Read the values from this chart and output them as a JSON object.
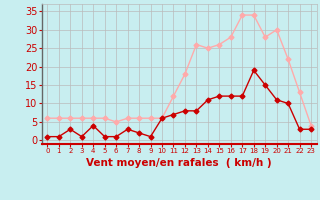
{
  "x": [
    0,
    1,
    2,
    3,
    4,
    5,
    6,
    7,
    8,
    9,
    10,
    11,
    12,
    13,
    14,
    15,
    16,
    17,
    18,
    19,
    20,
    21,
    22,
    23
  ],
  "y_mean": [
    1,
    1,
    3,
    1,
    4,
    1,
    1,
    3,
    2,
    1,
    6,
    7,
    8,
    8,
    11,
    12,
    12,
    12,
    19,
    15,
    11,
    10,
    3,
    3
  ],
  "y_gust": [
    6,
    6,
    6,
    6,
    6,
    6,
    5,
    6,
    6,
    6,
    6,
    12,
    18,
    26,
    25,
    26,
    28,
    34,
    34,
    28,
    30,
    22,
    13,
    4
  ],
  "mean_color": "#cc0000",
  "gust_color": "#ffaaaa",
  "bg_color": "#c8eef0",
  "grid_color": "#bbbbbb",
  "xlabel": "Vent moyen/en rafales  ( km/h )",
  "ylabel_ticks": [
    0,
    5,
    10,
    15,
    20,
    25,
    30,
    35
  ],
  "xlim": [
    -0.5,
    23.5
  ],
  "ylim": [
    -1,
    37
  ],
  "marker": "D",
  "marker_size": 2.5,
  "line_width": 1.0,
  "xlabel_color": "#cc0000",
  "tick_color": "#cc0000",
  "xlabel_fontsize": 7.5,
  "ytick_fontsize": 7,
  "xtick_fontsize": 5
}
